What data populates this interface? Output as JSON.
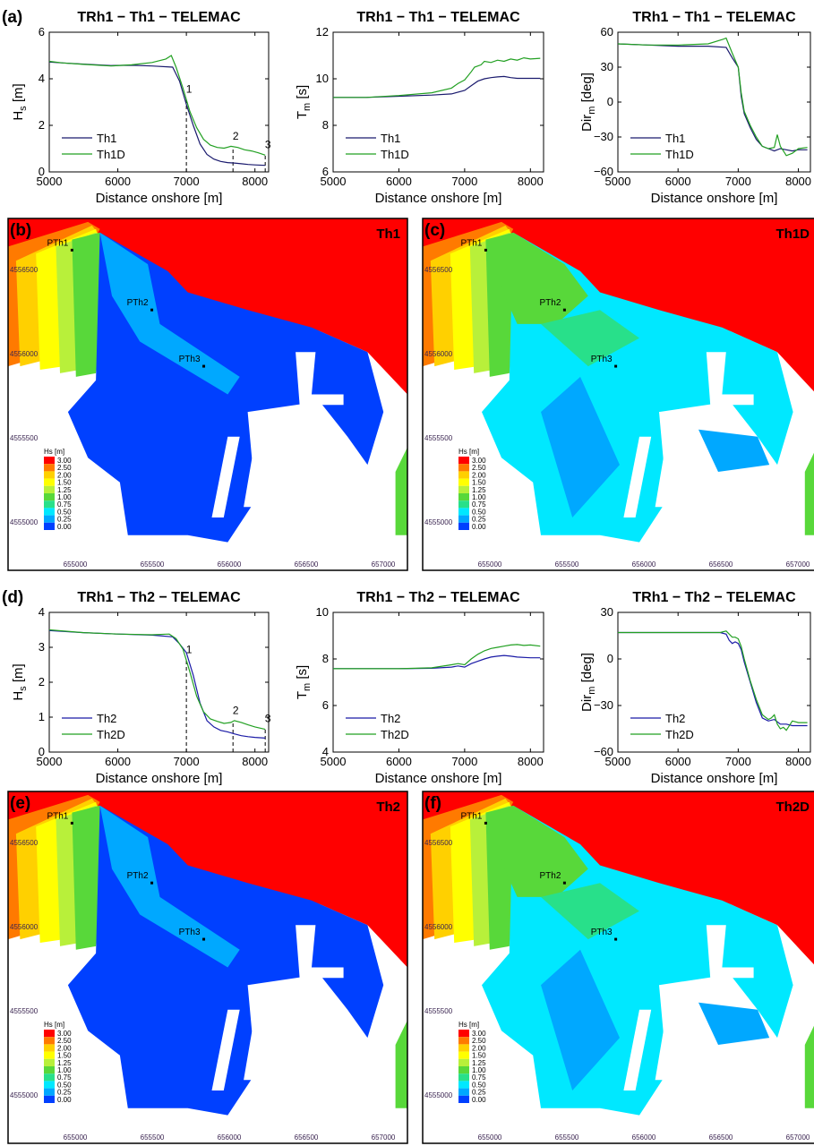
{
  "chart_data": [
    {
      "type": "line",
      "panel": "(a)",
      "title": "TRh1 − Th1 − TELEMAC",
      "xlabel": "Distance onshore [m]",
      "ylabel": "H_s [m]",
      "xlim": [
        5000,
        8200
      ],
      "ylim": [
        0,
        6
      ],
      "xticks": [
        5000,
        6000,
        7000,
        8000
      ],
      "yticks": [
        0,
        2,
        4,
        6
      ],
      "grid": false,
      "legend": "bottom-left",
      "colors": [
        "#1a1a6e",
        "#22a022"
      ],
      "series": [
        {
          "name": "Th1",
          "x": [
            5000,
            5200,
            5500,
            5900,
            6200,
            6500,
            6800,
            6900,
            7000,
            7100,
            7200,
            7300,
            7400,
            7500,
            7600,
            7700,
            7800,
            7900,
            8000,
            8150
          ],
          "y": [
            4.72,
            4.68,
            4.63,
            4.57,
            4.58,
            4.55,
            4.5,
            3.9,
            2.9,
            2.0,
            1.2,
            0.75,
            0.55,
            0.45,
            0.4,
            0.38,
            0.35,
            0.32,
            0.3,
            0.28
          ]
        },
        {
          "name": "Th1D",
          "x": [
            5000,
            5200,
            5500,
            5900,
            6200,
            6500,
            6700,
            6780,
            6850,
            6950,
            7050,
            7150,
            7250,
            7350,
            7450,
            7550,
            7650,
            7750,
            7850,
            7950,
            8050,
            8150
          ],
          "y": [
            4.75,
            4.68,
            4.62,
            4.55,
            4.6,
            4.7,
            4.85,
            5.0,
            4.5,
            3.6,
            2.6,
            1.9,
            1.4,
            1.15,
            1.05,
            1.02,
            1.1,
            1.05,
            0.95,
            0.9,
            0.82,
            0.72
          ]
        }
      ],
      "markers": [
        {
          "label": "1",
          "x": 7000
        },
        {
          "label": "2",
          "x": 7680
        },
        {
          "label": "3",
          "x": 8150
        }
      ]
    },
    {
      "type": "line",
      "panel": "(a)",
      "title": "TRh1 − Th1 − TELEMAC",
      "xlabel": "Distance onshore [m]",
      "ylabel": "T_m [s]",
      "xlim": [
        5000,
        8200
      ],
      "ylim": [
        6,
        12
      ],
      "xticks": [
        5000,
        6000,
        7000,
        8000
      ],
      "yticks": [
        6,
        8,
        10,
        12
      ],
      "grid": false,
      "legend": "bottom-left",
      "colors": [
        "#1a1a6e",
        "#22a022"
      ],
      "series": [
        {
          "name": "Th1",
          "x": [
            5000,
            5500,
            6000,
            6500,
            6800,
            7000,
            7100,
            7200,
            7300,
            7400,
            7500,
            7600,
            7700,
            7800,
            8000,
            8150
          ],
          "y": [
            9.2,
            9.2,
            9.25,
            9.3,
            9.35,
            9.5,
            9.7,
            9.9,
            10.0,
            10.05,
            10.08,
            10.1,
            10.05,
            10.02,
            10.02,
            10.02
          ]
        },
        {
          "name": "Th1D",
          "x": [
            5000,
            5500,
            6000,
            6500,
            6800,
            6900,
            7000,
            7100,
            7150,
            7250,
            7300,
            7400,
            7500,
            7600,
            7700,
            7800,
            7900,
            8000,
            8150
          ],
          "y": [
            9.2,
            9.2,
            9.28,
            9.4,
            9.6,
            9.8,
            9.95,
            10.3,
            10.5,
            10.6,
            10.75,
            10.7,
            10.8,
            10.75,
            10.85,
            10.8,
            10.9,
            10.85,
            10.88
          ]
        }
      ]
    },
    {
      "type": "line",
      "panel": "(a)",
      "title": "TRh1 − Th1 − TELEMAC",
      "xlabel": "Distance onshore [m]",
      "ylabel": "Dir_m [deg]",
      "xlim": [
        5000,
        8200
      ],
      "ylim": [
        -60,
        60
      ],
      "xticks": [
        5000,
        6000,
        7000,
        8000
      ],
      "yticks": [
        -60,
        -30,
        0,
        30,
        60
      ],
      "grid": false,
      "legend": "bottom-left",
      "colors": [
        "#1a1a6e",
        "#22a022"
      ],
      "series": [
        {
          "name": "Th1",
          "x": [
            5000,
            5500,
            6000,
            6500,
            6800,
            6900,
            7000,
            7050,
            7100,
            7200,
            7300,
            7400,
            7500,
            7600,
            7700,
            7800,
            7900,
            8000,
            8150
          ],
          "y": [
            50,
            49,
            48,
            48,
            47,
            38,
            30,
            5,
            -10,
            -22,
            -32,
            -38,
            -40,
            -42,
            -40,
            -41,
            -42,
            -41,
            -41
          ]
        },
        {
          "name": "Th1D",
          "x": [
            5000,
            5500,
            6000,
            6500,
            6750,
            6800,
            6900,
            7000,
            7050,
            7100,
            7200,
            7300,
            7400,
            7500,
            7600,
            7650,
            7700,
            7750,
            7800,
            7900,
            8000,
            8150
          ],
          "y": [
            50,
            49,
            49,
            50,
            54,
            55,
            42,
            30,
            8,
            -8,
            -20,
            -30,
            -38,
            -40,
            -39,
            -28,
            -38,
            -42,
            -46,
            -44,
            -40,
            -39
          ]
        }
      ]
    },
    {
      "type": "line",
      "panel": "(d)",
      "title": "TRh1 − Th2 − TELEMAC",
      "xlabel": "Distance onshore [m]",
      "ylabel": "H_s [m]",
      "xlim": [
        5000,
        8200
      ],
      "ylim": [
        0,
        4
      ],
      "xticks": [
        5000,
        6000,
        7000,
        8000
      ],
      "yticks": [
        0,
        1,
        2,
        3,
        4
      ],
      "grid": false,
      "legend": "bottom-left",
      "colors": [
        "#1a1aa6",
        "#22a022"
      ],
      "series": [
        {
          "name": "Th2",
          "x": [
            5000,
            5500,
            6000,
            6500,
            6800,
            6900,
            7000,
            7100,
            7200,
            7300,
            7400,
            7500,
            7600,
            7700,
            7800,
            7900,
            8000,
            8150
          ],
          "y": [
            3.48,
            3.42,
            3.38,
            3.35,
            3.3,
            3.1,
            2.85,
            2.2,
            1.4,
            0.9,
            0.72,
            0.62,
            0.58,
            0.52,
            0.47,
            0.44,
            0.42,
            0.4
          ]
        },
        {
          "name": "Th2D",
          "x": [
            5000,
            5500,
            6000,
            6500,
            6750,
            6850,
            6950,
            7050,
            7150,
            7250,
            7350,
            7450,
            7550,
            7650,
            7700,
            7800,
            7900,
            8000,
            8150
          ],
          "y": [
            3.5,
            3.42,
            3.38,
            3.36,
            3.38,
            3.25,
            2.95,
            2.3,
            1.6,
            1.15,
            0.95,
            0.88,
            0.82,
            0.85,
            0.9,
            0.85,
            0.78,
            0.72,
            0.65
          ]
        }
      ],
      "markers": [
        {
          "label": "1",
          "x": 7000
        },
        {
          "label": "2",
          "x": 7680
        },
        {
          "label": "3",
          "x": 8150
        }
      ]
    },
    {
      "type": "line",
      "panel": "(d)",
      "title": "TRh1 − Th2 − TELEMAC",
      "xlabel": "Distance onshore [m]",
      "ylabel": "T_m [s]",
      "xlim": [
        5000,
        8200
      ],
      "ylim": [
        4,
        10
      ],
      "xticks": [
        5000,
        6000,
        7000,
        8000
      ],
      "yticks": [
        4,
        6,
        8,
        10
      ],
      "grid": false,
      "legend": "bottom-left",
      "colors": [
        "#1a1aa6",
        "#22a022"
      ],
      "series": [
        {
          "name": "Th2",
          "x": [
            5000,
            5500,
            6000,
            6500,
            6800,
            6900,
            7000,
            7100,
            7200,
            7300,
            7400,
            7500,
            7600,
            7700,
            7800,
            8000,
            8150
          ],
          "y": [
            7.58,
            7.58,
            7.58,
            7.6,
            7.65,
            7.7,
            7.65,
            7.8,
            7.9,
            8.0,
            8.08,
            8.12,
            8.15,
            8.12,
            8.08,
            8.05,
            8.05
          ]
        },
        {
          "name": "Th2D",
          "x": [
            5000,
            5500,
            6000,
            6500,
            6800,
            6900,
            7000,
            7100,
            7200,
            7300,
            7400,
            7500,
            7600,
            7700,
            7800,
            7900,
            8000,
            8150
          ],
          "y": [
            7.58,
            7.58,
            7.58,
            7.62,
            7.75,
            7.8,
            7.75,
            8.0,
            8.2,
            8.35,
            8.45,
            8.5,
            8.55,
            8.6,
            8.62,
            8.58,
            8.6,
            8.55
          ]
        }
      ]
    },
    {
      "type": "line",
      "panel": "(d)",
      "title": "TRh1 − Th2 − TELEMAC",
      "xlabel": "Distance onshore [m]",
      "ylabel": "Dir_m [deg]",
      "xlim": [
        5000,
        8200
      ],
      "ylim": [
        -60,
        30
      ],
      "xticks": [
        5000,
        6000,
        7000,
        8000
      ],
      "yticks": [
        -60,
        -30,
        0,
        30
      ],
      "grid": false,
      "legend": "bottom-left",
      "colors": [
        "#1a1aa6",
        "#22a022"
      ],
      "series": [
        {
          "name": "Th2",
          "x": [
            5000,
            5500,
            6000,
            6500,
            6700,
            6800,
            6850,
            6900,
            6950,
            7000,
            7050,
            7100,
            7200,
            7300,
            7400,
            7500,
            7600,
            7700,
            7800,
            7900,
            8000,
            8150
          ],
          "y": [
            17,
            17,
            17,
            17,
            17,
            16,
            12,
            10,
            11,
            10,
            6,
            -2,
            -15,
            -28,
            -38,
            -40,
            -39,
            -42,
            -42,
            -43,
            -43,
            -43
          ]
        },
        {
          "name": "Th2D",
          "x": [
            5000,
            5500,
            6000,
            6500,
            6700,
            6800,
            6900,
            6950,
            7000,
            7050,
            7100,
            7200,
            7300,
            7400,
            7500,
            7550,
            7600,
            7650,
            7700,
            7750,
            7800,
            7900,
            8000,
            8150
          ],
          "y": [
            17,
            17,
            17,
            17,
            17,
            18,
            14,
            14,
            13,
            8,
            0,
            -14,
            -26,
            -36,
            -39,
            -38,
            -36,
            -42,
            -45,
            -44,
            -46,
            -40,
            -41,
            -41
          ]
        }
      ]
    }
  ],
  "maps": [
    {
      "panel": "(b)",
      "case": "Th1",
      "points": [
        "PTh1",
        "PTh2",
        "PTh3"
      ]
    },
    {
      "panel": "(c)",
      "case": "Th1D",
      "points": [
        "PTh1",
        "PTh2",
        "PTh3"
      ]
    },
    {
      "panel": "(e)",
      "case": "Th2",
      "points": [
        "PTh1",
        "PTh2",
        "PTh3"
      ]
    },
    {
      "panel": "(f)",
      "case": "Th2D",
      "points": [
        "PTh1",
        "PTh2",
        "PTh3"
      ]
    }
  ],
  "map_axes": {
    "xticks": [
      "655000",
      "655500",
      "656000",
      "656500",
      "657000"
    ],
    "yticks": [
      "4556500",
      "4556000",
      "4555500",
      "4555000"
    ]
  },
  "colorbar": {
    "title": "Hs [m]",
    "labels": [
      "3.00",
      "2.50",
      "2.00",
      "1.50",
      "1.25",
      "1.00",
      "0.75",
      "0.50",
      "0.25",
      "0.00"
    ],
    "colors": [
      "#ff0000",
      "#ff7a00",
      "#ffd000",
      "#ffff00",
      "#b8f03a",
      "#58d83a",
      "#28e08a",
      "#00e8ff",
      "#00a8ff",
      "#0040ff"
    ]
  }
}
